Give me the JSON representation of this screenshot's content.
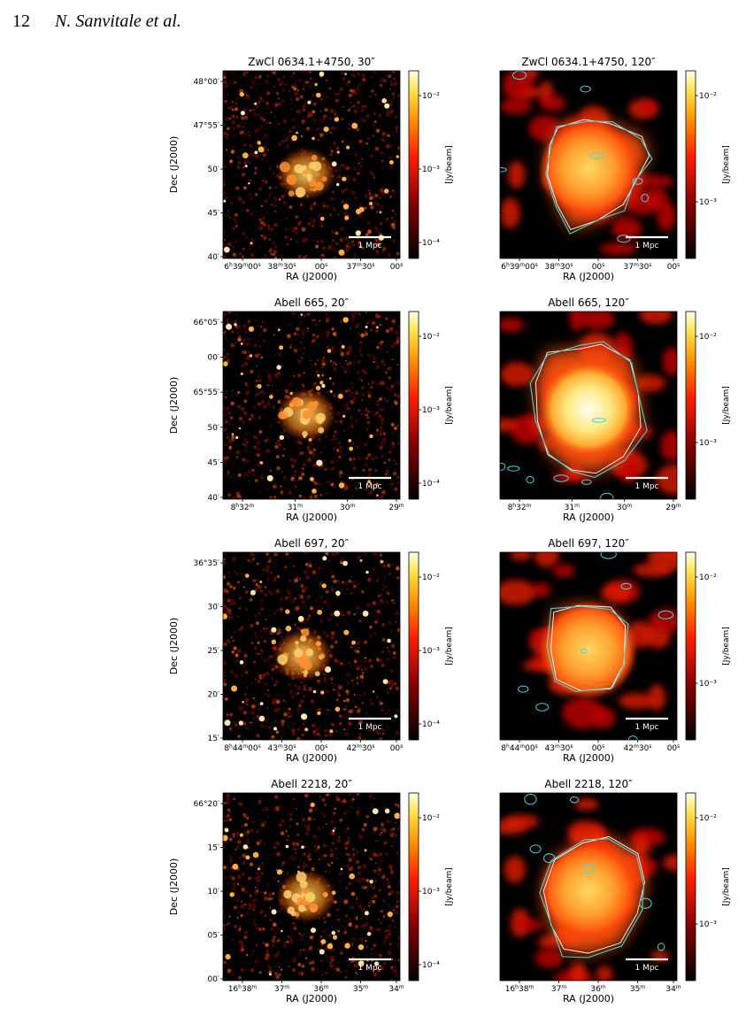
{
  "header": {
    "page_number": "12",
    "authors": "N. Sanvitale et al."
  },
  "colorbar_unit": "[Jy/beam]",
  "axis_labels": {
    "x": "RA (J2000)",
    "y": "Dec (J2000)"
  },
  "scalebar_label": "1 Mpc",
  "colors": {
    "contour": "#40d8e0",
    "background": "#000000"
  },
  "rows": [
    {
      "left": {
        "title": "ZwCl 0634.1+4750, 30″",
        "xticks": [
          "6h39m00s",
          "38m30s",
          "00s",
          "37m30s",
          "00s"
        ],
        "yticks": [
          "48°00′",
          "47°55′",
          "50′",
          "45′",
          "40′"
        ],
        "cbticks": [
          "10⁻²",
          "10⁻³",
          "10⁻⁴"
        ]
      },
      "right": {
        "title": "ZwCl 0634.1+4750, 120″",
        "xticks": [
          "6h39m00s",
          "38m30s",
          "00s",
          "37m30s",
          "00s"
        ],
        "cbticks": [
          "10⁻²",
          "10⁻³"
        ]
      }
    },
    {
      "left": {
        "title": "Abell 665, 20″",
        "xticks": [
          "8h32m",
          "31m",
          "30m",
          "29m"
        ],
        "yticks": [
          "66°05′",
          "00′",
          "65°55′",
          "50′",
          "45′",
          "40′"
        ],
        "cbticks": [
          "10⁻²",
          "10⁻³",
          "10⁻⁴"
        ]
      },
      "right": {
        "title": "Abell 665, 120″",
        "xticks": [
          "8h32m",
          "31m",
          "30m",
          "29m"
        ],
        "cbticks": [
          "10⁻²",
          "10⁻³"
        ]
      }
    },
    {
      "left": {
        "title": "Abell 697, 20″",
        "xticks": [
          "8h44m00s",
          "43m30s",
          "00s",
          "42m30s",
          "00s"
        ],
        "yticks": [
          "36°35′",
          "30′",
          "25′",
          "20′",
          "15′"
        ],
        "cbticks": [
          "10⁻²",
          "10⁻³",
          "10⁻⁴"
        ]
      },
      "right": {
        "title": "Abell 697, 120″",
        "xticks": [
          "8h44m00s",
          "43m30s",
          "00s",
          "42m30s",
          "00s"
        ],
        "cbticks": [
          "10⁻²",
          "10⁻³"
        ]
      }
    },
    {
      "left": {
        "title": "Abell 2218, 20″",
        "xticks": [
          "16h38m",
          "37m",
          "36m",
          "35m",
          "34m"
        ],
        "yticks": [
          "66°20′",
          "15′",
          "10′",
          "05′",
          "00′"
        ],
        "cbticks": [
          "10⁻²",
          "10⁻³",
          "10⁻⁴"
        ]
      },
      "right": {
        "title": "Abell 2218, 120″",
        "xticks": [
          "16h38m",
          "37m",
          "36m",
          "35m",
          "34m"
        ],
        "cbticks": [
          "10⁻²",
          "10⁻³"
        ]
      }
    }
  ]
}
